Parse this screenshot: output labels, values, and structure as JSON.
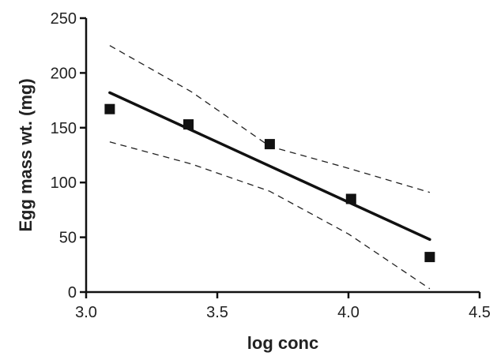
{
  "chart_data": {
    "type": "scatter",
    "xlabel": "log conc",
    "ylabel": "Egg mass wt. (mg)",
    "xlim": [
      3.0,
      4.5
    ],
    "ylim": [
      0,
      250
    ],
    "x_ticks": [
      "3.0",
      "3.5",
      "4.0",
      "4.5"
    ],
    "y_ticks": [
      "0",
      "50",
      "100",
      "150",
      "200",
      "250"
    ],
    "grid": false,
    "points": {
      "x": [
        3.09,
        3.39,
        3.7,
        4.01,
        4.31
      ],
      "y": [
        167,
        153,
        135,
        85,
        32
      ]
    },
    "fit_line": {
      "x": [
        3.09,
        4.31
      ],
      "y": [
        182,
        48
      ]
    },
    "confidence_band": {
      "upper": {
        "x": [
          3.09,
          3.4,
          3.7,
          4.0,
          4.31
        ],
        "y": [
          225,
          183,
          133,
          113,
          91
        ]
      },
      "lower": {
        "x": [
          3.09,
          3.4,
          3.7,
          4.0,
          4.31
        ],
        "y": [
          137,
          117,
          92,
          53,
          3
        ]
      }
    },
    "colors": {
      "ink": "#111111",
      "band": "#222222"
    }
  }
}
